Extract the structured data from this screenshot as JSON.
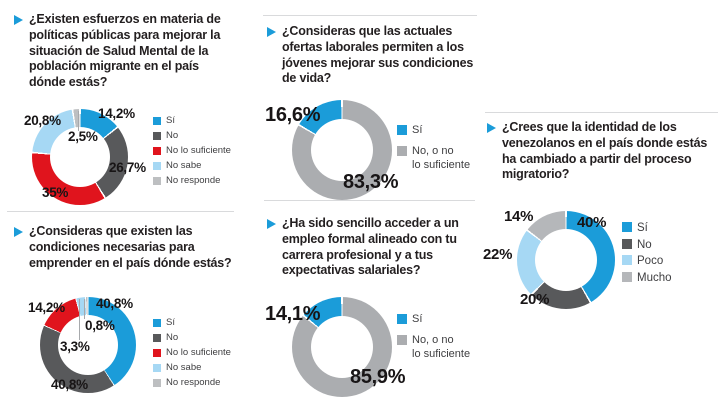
{
  "colors": {
    "accent_blue": "#1b9cd9",
    "dark_gray": "#58595b",
    "red": "#e0141d",
    "light_blue": "#a6d8f4",
    "light_gray": "#bdbfc1",
    "medium_gray": "#abadb0",
    "divider": "#d9dadc",
    "text_dark": "#231f20"
  },
  "chart_data": [
    {
      "type": "donut",
      "question": "¿Existen esfuerzos en materia de políticas públicas para mejorar la situación de Salud Mental de la población migrante en el país dónde estás?",
      "legend_position": "right",
      "segments": [
        {
          "label": "Sí",
          "value": 14.2,
          "display": "14,2%",
          "color": "#1b9cd9"
        },
        {
          "label": "No",
          "value": 26.7,
          "display": "26,7%",
          "color": "#58595b"
        },
        {
          "label": "No lo suficiente",
          "value": 35,
          "display": "35%",
          "color": "#e0141d"
        },
        {
          "label": "No sabe",
          "value": 20.8,
          "display": "20,8%",
          "color": "#a6d8f4"
        },
        {
          "label": "No responde",
          "value": 2.5,
          "display": "2,5%",
          "color": "#bdbfc1"
        }
      ]
    },
    {
      "type": "donut",
      "question": "¿Consideras que las actuales ofertas laborales permiten a los jóvenes mejorar sus condiciones de vida?",
      "legend_position": "right",
      "draw_order": [
        1,
        0
      ],
      "segments": [
        {
          "label": "Sí",
          "value": 16.6,
          "display": "16,6%",
          "color": "#1b9cd9"
        },
        {
          "label": "No, o no\nlo suficiente",
          "value": 83.3,
          "display": "83,3%",
          "color": "#abadb0"
        }
      ]
    },
    {
      "type": "donut",
      "question": "¿Crees que la identidad de los venezolanos en el país donde estás ha cambiado a partir del proceso migratorio?",
      "legend_position": "right",
      "segments": [
        {
          "label": "Sí",
          "value": 40,
          "display": "40%",
          "color": "#1b9cd9"
        },
        {
          "label": "No",
          "value": 20,
          "display": "20%",
          "color": "#58595b"
        },
        {
          "label": "Poco",
          "value": 22,
          "display": "22%",
          "color": "#a6d8f4"
        },
        {
          "label": "Mucho",
          "value": 14,
          "display": "14%",
          "color": "#b5b7ba"
        }
      ]
    },
    {
      "type": "donut",
      "question": "¿Consideras que existen las condiciones necesarias para emprender en el país dónde estás?",
      "legend_position": "right",
      "segments": [
        {
          "label": "Sí",
          "value": 40.8,
          "display": "40,8%",
          "color": "#1b9cd9"
        },
        {
          "label": "No",
          "value": 40.8,
          "display": "40,8%",
          "color": "#58595b"
        },
        {
          "label": "No lo suficiente",
          "value": 14.2,
          "display": "14,2%",
          "color": "#e0141d"
        },
        {
          "label": "No sabe",
          "value": 3.3,
          "display": "3,3%",
          "color": "#a6d8f4"
        },
        {
          "label": "No responde",
          "value": 0.8,
          "display": "0,8%",
          "color": "#bdbfc1"
        }
      ]
    },
    {
      "type": "donut",
      "question": "¿Ha sido sencillo acceder a un empleo formal alineado con tu carrera profesional y a tus expectativas salariales?",
      "legend_position": "right",
      "draw_order": [
        1,
        0
      ],
      "segments": [
        {
          "label": "Sí",
          "value": 14.1,
          "display": "14,1%",
          "color": "#1b9cd9"
        },
        {
          "label": "No, o no\nlo suficiente",
          "value": 85.9,
          "display": "85,9%",
          "color": "#abadb0"
        }
      ]
    }
  ]
}
